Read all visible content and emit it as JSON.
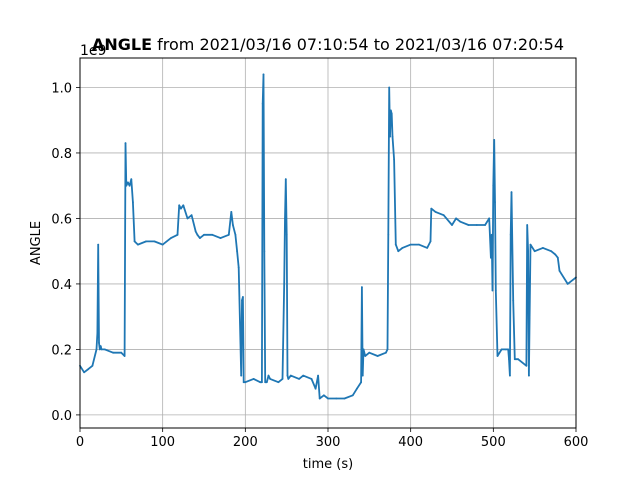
{
  "chart_data": {
    "type": "line",
    "title_bold": "ANGLE",
    "title_rest": " from 2021/03/16 07:10:54 to 2021/03/16 07:20:54",
    "xlabel": "time (s)",
    "ylabel": "ANGLE",
    "offset_text": "1e9",
    "xlim": [
      0,
      600
    ],
    "ylim": [
      -0.04,
      1.09
    ],
    "y_scale_factor": 1000000000,
    "grid": true,
    "xticks": [
      0,
      100,
      200,
      300,
      400,
      500,
      600
    ],
    "xtick_labels": [
      "0",
      "100",
      "200",
      "300",
      "400",
      "500",
      "600"
    ],
    "yticks": [
      0.0,
      0.2,
      0.4,
      0.6,
      0.8,
      1.0
    ],
    "ytick_labels": [
      "0.0",
      "0.2",
      "0.4",
      "0.6",
      "0.8",
      "1.0"
    ],
    "series": [
      {
        "color": "#1f77b4",
        "x": [
          0,
          5,
          10,
          15,
          20,
          21,
          22,
          23,
          24,
          25,
          26,
          30,
          40,
          50,
          54,
          55,
          56,
          58,
          60,
          62,
          64,
          66,
          70,
          80,
          90,
          100,
          110,
          118,
          120,
          122,
          125,
          130,
          135,
          140,
          142,
          145,
          150,
          160,
          170,
          180,
          183,
          185,
          188,
          190,
          192,
          195,
          196,
          197,
          198,
          200,
          210,
          218,
          220,
          221,
          222,
          223,
          224,
          226,
          228,
          230,
          240,
          245,
          247,
          248,
          249,
          250,
          251,
          252,
          255,
          265,
          270,
          280,
          285,
          288,
          290,
          295,
          300,
          310,
          320,
          330,
          335,
          340,
          341,
          342,
          343,
          345,
          350,
          360,
          370,
          372,
          373,
          374,
          375,
          376,
          377,
          378,
          380,
          382,
          385,
          390,
          400,
          410,
          420,
          424,
          425,
          430,
          440,
          450,
          455,
          460,
          470,
          480,
          490,
          495,
          497,
          498,
          499,
          500,
          501,
          502,
          503,
          505,
          510,
          515,
          518,
          519,
          520,
          521,
          522,
          524,
          526,
          530,
          540,
          541,
          542,
          543,
          545,
          550,
          560,
          570,
          575,
          578,
          580,
          590,
          600
        ],
        "y": [
          0.15,
          0.13,
          0.14,
          0.15,
          0.2,
          0.25,
          0.52,
          0.22,
          0.2,
          0.21,
          0.2,
          0.2,
          0.19,
          0.19,
          0.18,
          0.83,
          0.7,
          0.71,
          0.7,
          0.72,
          0.65,
          0.53,
          0.52,
          0.53,
          0.53,
          0.52,
          0.54,
          0.55,
          0.64,
          0.63,
          0.64,
          0.6,
          0.61,
          0.56,
          0.55,
          0.54,
          0.55,
          0.55,
          0.54,
          0.55,
          0.62,
          0.58,
          0.55,
          0.5,
          0.45,
          0.12,
          0.35,
          0.36,
          0.1,
          0.1,
          0.11,
          0.1,
          0.1,
          0.95,
          1.04,
          0.5,
          0.1,
          0.1,
          0.12,
          0.11,
          0.1,
          0.11,
          0.4,
          0.6,
          0.72,
          0.55,
          0.12,
          0.11,
          0.12,
          0.11,
          0.12,
          0.11,
          0.08,
          0.12,
          0.05,
          0.06,
          0.05,
          0.05,
          0.05,
          0.06,
          0.08,
          0.1,
          0.39,
          0.12,
          0.2,
          0.18,
          0.19,
          0.18,
          0.19,
          0.2,
          0.55,
          1.0,
          0.85,
          0.93,
          0.92,
          0.85,
          0.78,
          0.52,
          0.5,
          0.51,
          0.52,
          0.52,
          0.51,
          0.53,
          0.63,
          0.62,
          0.61,
          0.58,
          0.6,
          0.59,
          0.58,
          0.58,
          0.58,
          0.6,
          0.48,
          0.55,
          0.38,
          0.7,
          0.84,
          0.65,
          0.38,
          0.18,
          0.2,
          0.2,
          0.2,
          0.17,
          0.12,
          0.55,
          0.68,
          0.35,
          0.17,
          0.17,
          0.15,
          0.58,
          0.5,
          0.12,
          0.52,
          0.5,
          0.51,
          0.5,
          0.49,
          0.48,
          0.44,
          0.4,
          0.42
        ]
      }
    ]
  }
}
